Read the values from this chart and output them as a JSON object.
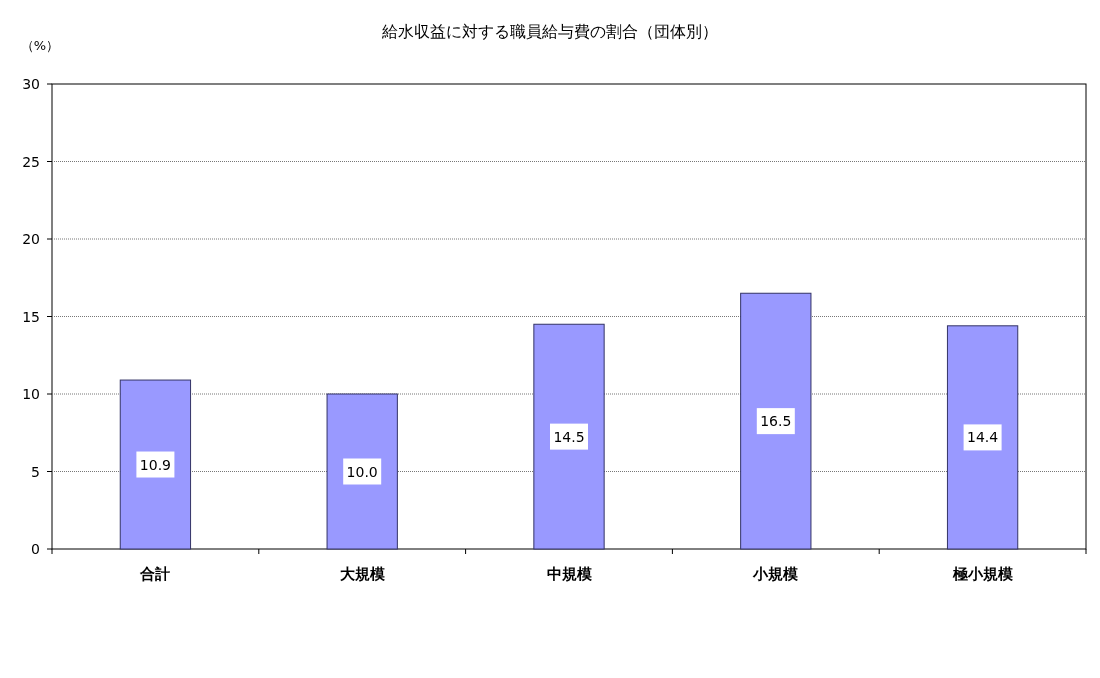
{
  "chart_data": {
    "type": "bar",
    "title": "給水収益に対する職員給与費の割合（団体別）",
    "ylabel": "（%）",
    "categories": [
      "合計",
      "大規模",
      "中規模",
      "小規模",
      "極小規模"
    ],
    "values": [
      10.9,
      10.0,
      14.5,
      16.5,
      14.4
    ],
    "value_labels": [
      "10.9",
      "10.0",
      "14.5",
      "16.5",
      "14.4"
    ],
    "color": "#9999ff",
    "ylim": [
      0,
      30
    ],
    "yticks": [
      0,
      5,
      10,
      15,
      20,
      25,
      30
    ],
    "grid": "y"
  }
}
